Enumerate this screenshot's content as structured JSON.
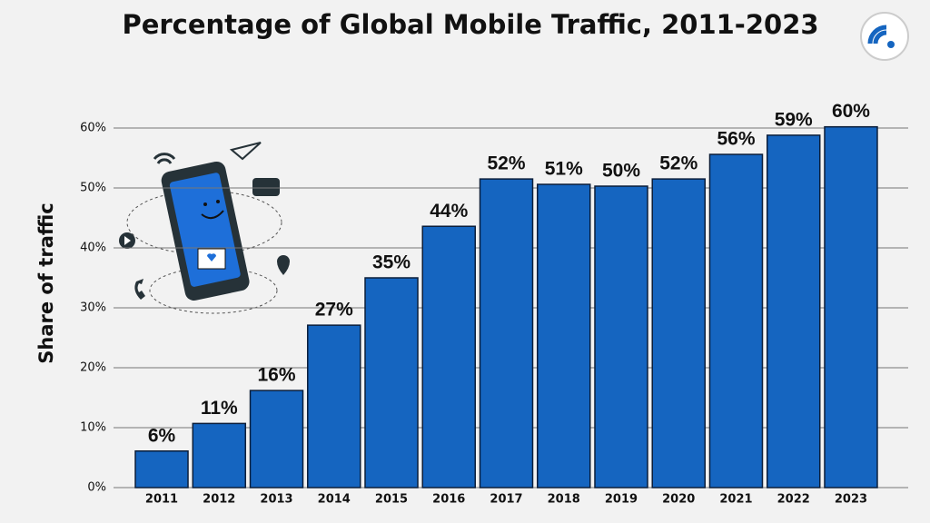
{
  "chart_data": {
    "type": "bar",
    "title": "Percentage of Global Mobile Traffic, 2011-2023",
    "y_label": "Share of traffic",
    "categories": [
      "2011",
      "2012",
      "2013",
      "2014",
      "2015",
      "2016",
      "2017",
      "2018",
      "2019",
      "2020",
      "2021",
      "2022",
      "2023"
    ],
    "values": [
      6.1,
      10.7,
      16.2,
      27.1,
      35.0,
      43.6,
      51.5,
      50.6,
      50.3,
      51.5,
      55.6,
      58.8,
      60.2
    ],
    "value_labels": [
      "6%",
      "11%",
      "16%",
      "27%",
      "35%",
      "44%",
      "52%",
      "51%",
      "50%",
      "52%",
      "56%",
      "59%",
      "60%"
    ],
    "color": "#1565c0",
    "ylim": [
      0,
      60
    ],
    "yticks": [
      {
        "value": 0,
        "label": "0%"
      },
      {
        "value": 10,
        "label": "10%"
      },
      {
        "value": 20,
        "label": "20%"
      },
      {
        "value": 30,
        "label": "30%"
      },
      {
        "value": 40,
        "label": "40%"
      },
      {
        "value": 50,
        "label": "50%"
      },
      {
        "value": 60,
        "label": "60%"
      }
    ],
    "grid": true
  }
}
